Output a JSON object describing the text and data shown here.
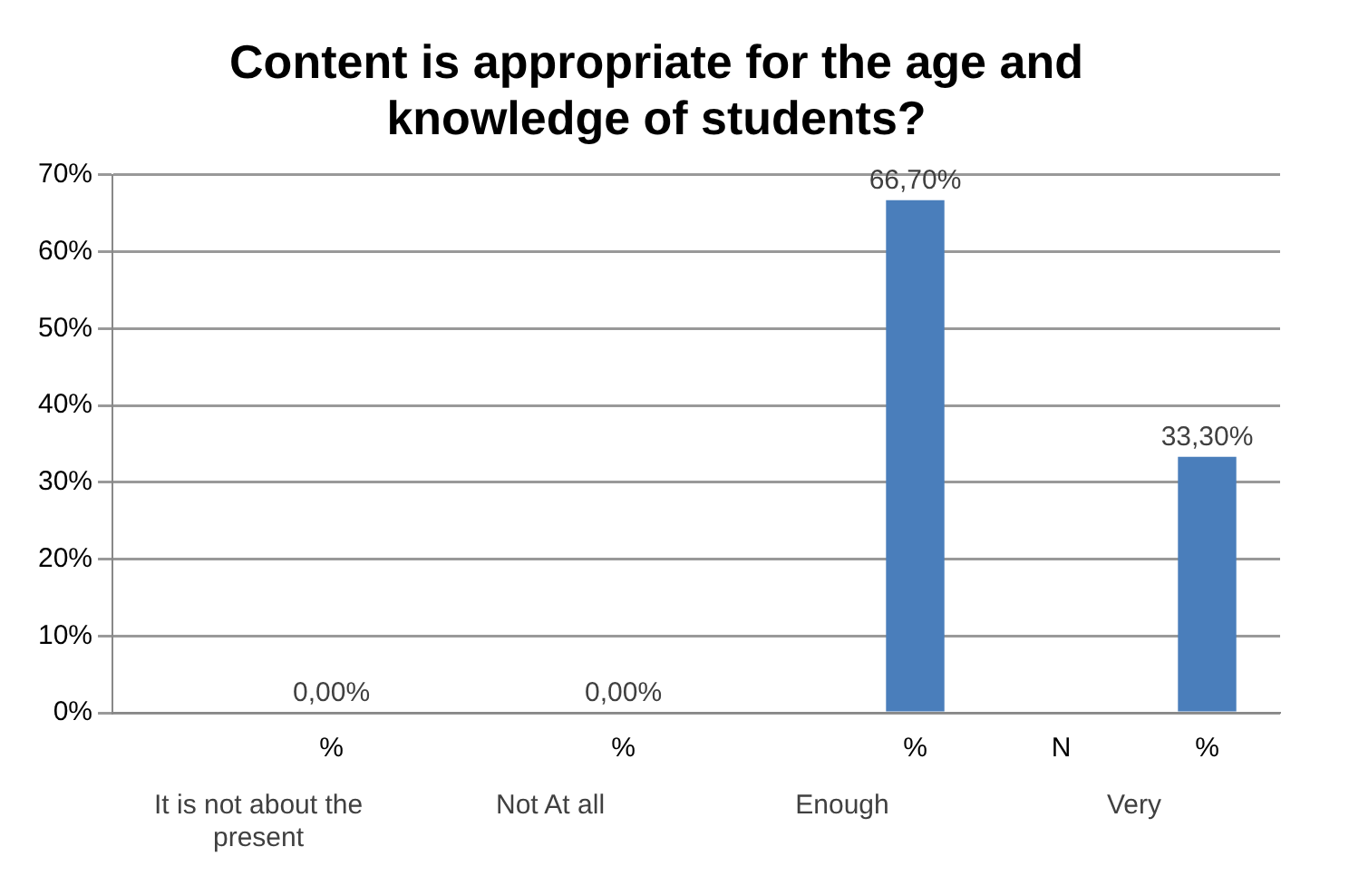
{
  "chart_data": {
    "type": "bar",
    "title": "Content is appropriate for the age and knowledge of students?",
    "categories": [
      null,
      "%",
      null,
      "%",
      null,
      "%",
      "N",
      "%"
    ],
    "values": [
      null,
      0,
      null,
      0,
      null,
      66.7,
      null,
      33.3
    ],
    "value_labels": [
      null,
      "0,00%",
      null,
      "0,00%",
      null,
      "66,70%",
      null,
      "33,30%"
    ],
    "color": "#4a7ebb",
    "annotations": [
      "It is not about the present",
      "Not At all",
      "Enough",
      "Very"
    ],
    "ylim": [
      0,
      70
    ],
    "yticks": [
      {
        "value": 0,
        "label": "0%"
      },
      {
        "value": 10,
        "label": "10%"
      },
      {
        "value": 20,
        "label": "20%"
      },
      {
        "value": 30,
        "label": "30%"
      },
      {
        "value": 40,
        "label": "40%"
      },
      {
        "value": 50,
        "label": "50%"
      },
      {
        "value": 60,
        "label": "60%"
      },
      {
        "value": 70,
        "label": "70%"
      }
    ],
    "grid": "y",
    "legend": false
  }
}
